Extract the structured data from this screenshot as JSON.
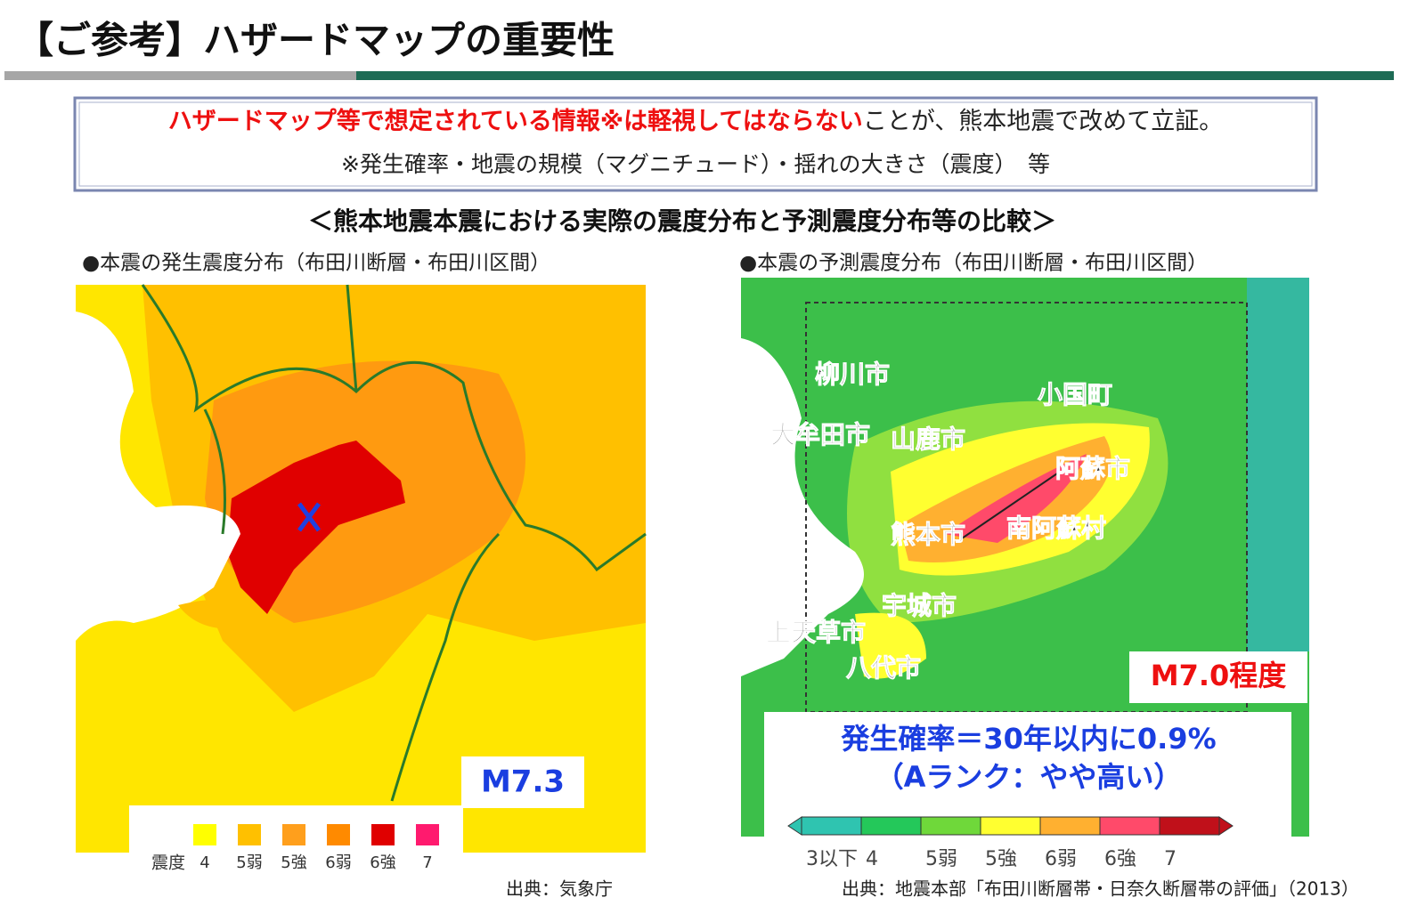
{
  "header": {
    "title": "【ご参考】ハザードマップの重要性"
  },
  "notice": {
    "emphasis": "ハザードマップ等で想定されている情報※は軽視してはならない",
    "rest": "ことが、熊本地震で改めて立証。",
    "note": "※発生確率・地震の規模（マグニチュード）・揺れの大きさ（震度）　等"
  },
  "subtitle": "＜熊本地震本震における実際の震度分布と予測震度分布等の比較＞",
  "left": {
    "heading": "●本震の発生震度分布（布田川断層・布田川区間）",
    "magnitude": "M7.3",
    "legend_title": "震度",
    "legend": [
      {
        "label": "4",
        "color": "#ffff00"
      },
      {
        "label": "5弱",
        "color": "#ffc000"
      },
      {
        "label": "5強",
        "color": "#ff9f1c"
      },
      {
        "label": "6弱",
        "color": "#ff8a00"
      },
      {
        "label": "6強",
        "color": "#e00000"
      },
      {
        "label": "7",
        "color": "#ff1a6e"
      }
    ],
    "source": "出典：気象庁"
  },
  "right": {
    "heading": "●本震の予測震度分布（布田川断層・布田川区間）",
    "cities": [
      "柳川市",
      "大牟田市",
      "山鹿市",
      "小国町",
      "阿蘇市",
      "熊本市",
      "南阿蘇村",
      "宇城市",
      "上天草市",
      "八代市"
    ],
    "magnitude": "M7.0程度",
    "probability": "発生確率＝30年以内に0.9%",
    "rank": "（Aランク：やや高い）",
    "colorbar": [
      {
        "label": "3以下",
        "color": "#2fc4b0"
      },
      {
        "label": "4",
        "color": "#24c85a"
      },
      {
        "label": "5弱",
        "color": "#6fd83a"
      },
      {
        "label": "5強",
        "color": "#ffff30"
      },
      {
        "label": "6弱",
        "color": "#ffb030"
      },
      {
        "label": "6強",
        "color": "#ff4a6a"
      },
      {
        "label": "7",
        "color": "#c0101a"
      }
    ],
    "source": "出典：地震本部「布田川断層帯・日奈久断層帯の評価」（2013）"
  }
}
